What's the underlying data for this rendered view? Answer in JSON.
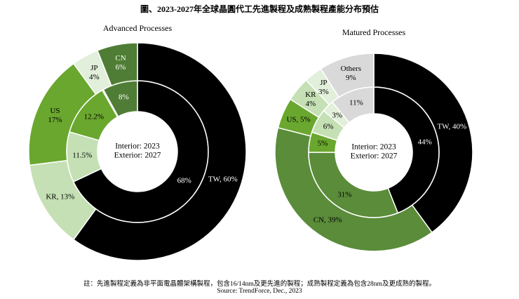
{
  "title": "圖、2023-2027年全球晶圓代工先進製程及成熟製程產能分布預估",
  "note": "註：先進製程定義為非平面電晶體架構製程，包含16/14nm及更先進的製程；成熟製程定義為包含28nm及更成熟的製程。",
  "source": "Source: TrendForce, Dec., 2023",
  "chart_data": [
    {
      "type": "donut",
      "title": "Advanced Processes",
      "categories": [
        "TW",
        "KR",
        "US",
        "JP",
        "CN"
      ],
      "colors": [
        "#000000",
        "#c5e0b4",
        "#6aa72e",
        "#e2efda",
        "#4f7d35"
      ],
      "series": [
        {
          "name": "Interior: 2023",
          "values": [
            68,
            11.5,
            12.2,
            0.3,
            8
          ],
          "value_labels": [
            "68%",
            "11.5%",
            "12.2%",
            null,
            "8%"
          ]
        },
        {
          "name": "Exterior: 2027",
          "values": [
            60,
            13,
            17,
            4,
            6
          ],
          "value_labels": [
            "TW, 60%",
            "KR, 13%",
            "US\n17%",
            "JP\n4%",
            "CN\n6%"
          ]
        }
      ]
    },
    {
      "type": "donut",
      "title": "Matured Processes",
      "categories": [
        "TW",
        "CN",
        "US",
        "KR",
        "JP",
        "Others"
      ],
      "colors": [
        "#000000",
        "#5a8c3a",
        "#6aa72e",
        "#c5e0b4",
        "#e2efda",
        "#d9d9d9"
      ],
      "series": [
        {
          "name": "Interior: 2023",
          "values": [
            44,
            31,
            5,
            6,
            3,
            11
          ],
          "value_labels": [
            "44%",
            "31%",
            "5%",
            "6%",
            "3%",
            "11%"
          ]
        },
        {
          "name": "Exterior: 2027",
          "values": [
            40,
            39,
            5,
            4,
            3,
            9
          ],
          "value_labels": [
            "TW, 40%",
            "CN, 39%",
            "US, 5%",
            "KR\n4%",
            "JP\n3%",
            "Others\n9%"
          ]
        }
      ]
    }
  ]
}
